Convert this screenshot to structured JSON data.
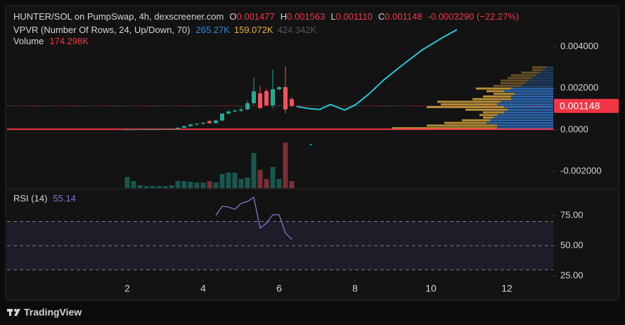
{
  "chart_data": {
    "type": "candlestick",
    "title": "HUNTER/SOL on PumpSwap, 4h, dexscreener.com",
    "ohlc_letters": [
      "O",
      "H",
      "L",
      "C"
    ],
    "ohlc_labels": [
      "0.001477",
      "0.001563",
      "0.001110",
      "0.001148"
    ],
    "change": "-0.0003290 (−22.27%)",
    "up_color": "#22ab94",
    "down_color": "#f7525f",
    "x": [
      2,
      2.1667,
      2.3333,
      2.5,
      2.6667,
      2.8333,
      3,
      3.1667,
      3.3333,
      3.5,
      3.6667,
      3.8333,
      4,
      4.1667,
      4.3333,
      4.5,
      4.6667,
      4.8333,
      5,
      5.1667,
      5.3333,
      5.5,
      5.6667,
      5.8333,
      6,
      6.1667,
      6.3333
    ],
    "open": [
      2e-05,
      2e-05,
      2e-05,
      3e-05,
      3e-05,
      3e-05,
      3e-05,
      4e-05,
      4e-05,
      0.0001,
      0.00018,
      0.00026,
      0.0003,
      0.00042,
      0.00032,
      0.00045,
      0.00078,
      0.00088,
      0.00092,
      0.00098,
      0.00128,
      0.00175,
      0.00186,
      0.00118,
      0.00195,
      0.00205,
      0.001477
    ],
    "high": [
      3e-05,
      3e-05,
      4e-05,
      4e-05,
      4e-05,
      4e-05,
      5e-05,
      5e-05,
      0.00012,
      0.0002,
      0.00028,
      0.00032,
      0.00036,
      0.00045,
      0.0005,
      0.0008,
      0.00095,
      0.001,
      0.00108,
      0.0014,
      0.0025,
      0.0021,
      0.00196,
      0.00288,
      0.0021,
      0.00305,
      0.001563
    ],
    "low": [
      1e-05,
      1e-05,
      1e-05,
      2e-05,
      2e-05,
      2e-05,
      2e-05,
      3e-05,
      3e-05,
      8e-05,
      0.00015,
      0.00022,
      0.00024,
      0.0003,
      0.0003,
      0.0004,
      0.00075,
      0.00085,
      0.00085,
      0.00095,
      0.0012,
      0.001,
      0.00115,
      0.00105,
      0.0019,
      0.0008,
      0.00111
    ],
    "close": [
      2e-05,
      2e-05,
      3e-05,
      3e-05,
      3e-05,
      3e-05,
      4e-05,
      4e-05,
      0.0001,
      0.00018,
      0.00026,
      0.0003,
      0.00034,
      0.00032,
      0.00045,
      0.00078,
      0.00088,
      0.00092,
      0.00098,
      0.00128,
      0.00185,
      0.00105,
      0.00118,
      0.00195,
      0.00205,
      0.00098,
      0.001148
    ],
    "xlim": [
      -1.1667,
      13.2222
    ],
    "xticks": [
      2,
      4,
      6,
      8,
      10,
      12
    ],
    "ylim": [
      -0.0028,
      0.0059
    ],
    "yticks": [
      {
        "value": 0.004,
        "label": "0.004000"
      },
      {
        "value": 0.002,
        "label": "0.002000"
      },
      {
        "value": 0,
        "label": "0.0000"
      },
      {
        "value": -0.002,
        "label": "-0.002000"
      }
    ],
    "hline": {
      "value": 3e-05,
      "color": "#f23645"
    },
    "drawing": {
      "color": "#26c6da",
      "x": [
        6.463,
        6.796,
        7.074,
        7.352,
        7.722,
        8.0,
        8.37,
        8.741,
        9.204,
        9.759,
        10.315,
        10.685
      ],
      "values": [
        0.00112,
        0.00102,
        0.00098,
        0.00122,
        0.00095,
        0.00119,
        0.00173,
        0.00237,
        0.00305,
        0.00383,
        0.00444,
        0.00481
      ]
    },
    "marker": {
      "x": 6.833,
      "value": -0.00071,
      "color": "#26c6da"
    },
    "volume": {
      "label": "Volume",
      "values": [
        278000,
        174000,
        70000,
        52000,
        52000,
        52000,
        52000,
        70000,
        174000,
        174000,
        157000,
        139000,
        139000,
        174000,
        139000,
        348000,
        383000,
        383000,
        226000,
        261000,
        870000,
        452000,
        226000,
        522000,
        226000,
        1131000,
        174298
      ],
      "value_labels": [
        null,
        null,
        null,
        null,
        null,
        null,
        null,
        null,
        null,
        null,
        null,
        null,
        null,
        null,
        null,
        null,
        null,
        null,
        null,
        null,
        null,
        null,
        null,
        null,
        null,
        null,
        "174.298K"
      ]
    },
    "vpvr": {
      "title": "VPVR (Number Of Rows, 24, Up/Down, 70)",
      "totals": [
        "265.27K",
        "159.072K",
        "424.342K"
      ],
      "price_range": [
        0,
        0.00305
      ],
      "value_area": [
        0,
        0.00216
      ],
      "up_color": "#2f6fbf",
      "down_color": "#c89b3c",
      "up": [
        80,
        80,
        95,
        90,
        85,
        80,
        70,
        65,
        70,
        80,
        75,
        60,
        60,
        55,
        70,
        60,
        45,
        40,
        35,
        30,
        25,
        20,
        15,
        10
      ],
      "down": [
        150,
        100,
        60,
        40,
        15,
        25,
        30,
        60,
        110,
        80,
        90,
        55,
        40,
        30,
        25,
        50,
        40,
        35,
        40,
        35,
        35,
        25,
        15,
        20
      ]
    },
    "rsi": {
      "title": "RSI (14)",
      "color": "#8a6fd1",
      "values": [
        null,
        null,
        null,
        null,
        null,
        null,
        null,
        null,
        null,
        null,
        null,
        null,
        null,
        null,
        75,
        82.6,
        82,
        80,
        85,
        86.6,
        90,
        64.5,
        68.6,
        75.6,
        75.6,
        60.5,
        55.14
      ],
      "ylim": [
        22.1,
        95.3
      ],
      "yticks": [
        {
          "value": 75,
          "label": "75.00"
        },
        {
          "value": 50,
          "label": "50.00"
        },
        {
          "value": 25,
          "label": "25.00"
        }
      ],
      "band": [
        30,
        70
      ],
      "midline": 50
    },
    "footer": "TradingView"
  }
}
